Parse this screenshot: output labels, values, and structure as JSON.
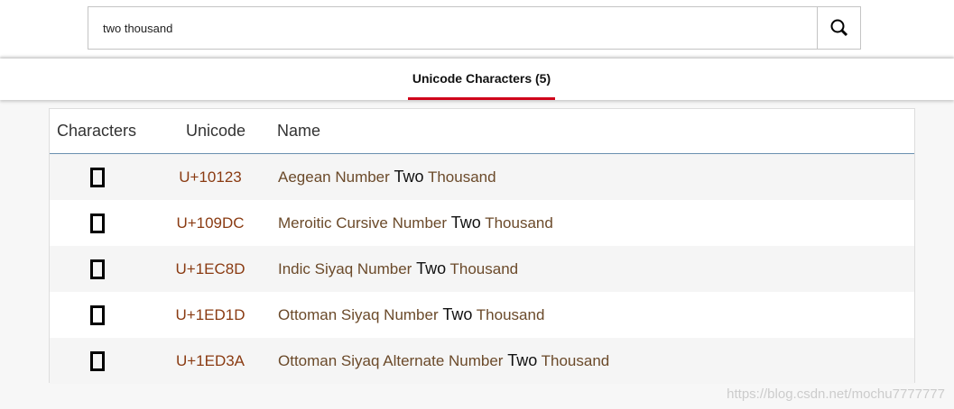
{
  "search": {
    "value": "two thousand",
    "icon": "search-icon"
  },
  "tab": {
    "label": "Unicode Characters (5)",
    "accent": "#d0021b"
  },
  "table": {
    "headers": [
      "Characters",
      "Unicode",
      "Name"
    ],
    "rows": [
      {
        "code": "U+10123",
        "pre": "Aegean Number ",
        "hl": "Two",
        "post": " Thousand"
      },
      {
        "code": "U+109DC",
        "pre": "Meroitic Cursive Number ",
        "hl": "Two",
        "post": " Thousand"
      },
      {
        "code": "U+1EC8D",
        "pre": "Indic Siyaq Number ",
        "hl": "Two",
        "post": " Thousand"
      },
      {
        "code": "U+1ED1D",
        "pre": "Ottoman Siyaq Number ",
        "hl": "Two",
        "post": " Thousand"
      },
      {
        "code": "U+1ED3A",
        "pre": "Ottoman Siyaq Alternate Number ",
        "hl": "Two",
        "post": " Thousand"
      }
    ]
  },
  "watermark": "https://blog.csdn.net/mochu7777777"
}
